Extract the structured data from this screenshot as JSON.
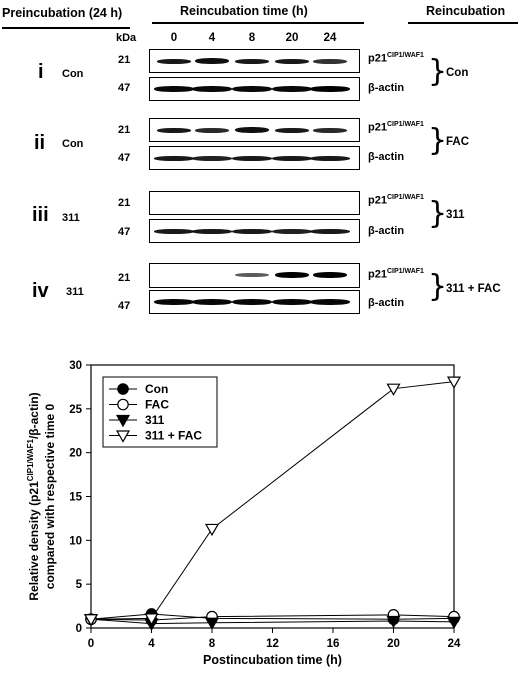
{
  "headers": {
    "preincubation": "Preincubation (24 h)",
    "reincubation_time": "Reincubation time (h)",
    "reincubation": "Reincubation"
  },
  "kda_label": "kDa",
  "lane_times": [
    "0",
    "4",
    "8",
    "20",
    "24"
  ],
  "protein_labels": {
    "p21_main": "p21",
    "p21_sup": "CIP1/WAF1",
    "actin": "β-actin"
  },
  "panels": [
    {
      "roman": "i",
      "preincubation": "Con",
      "reincubation": "Con",
      "mw_p21": "21",
      "mw_actin": "47",
      "p21_intensity": [
        0.85,
        0.9,
        0.85,
        0.85,
        0.7
      ],
      "actin_intensity": [
        0.95,
        0.95,
        0.95,
        0.95,
        1.0
      ]
    },
    {
      "roman": "ii",
      "preincubation": "Con",
      "reincubation": "FAC",
      "mw_p21": "21",
      "mw_actin": "47",
      "p21_intensity": [
        0.85,
        0.75,
        0.9,
        0.85,
        0.75
      ],
      "actin_intensity": [
        0.85,
        0.8,
        0.85,
        0.85,
        0.85
      ]
    },
    {
      "roman": "iii",
      "preincubation": "311",
      "reincubation": "311",
      "mw_p21": "21",
      "mw_actin": "47",
      "p21_intensity": [
        0,
        0,
        0,
        0,
        0
      ],
      "actin_intensity": [
        0.85,
        0.85,
        0.85,
        0.8,
        0.85
      ]
    },
    {
      "roman": "iv",
      "preincubation": "311",
      "reincubation": "311 + FAC",
      "mw_p21": "21",
      "mw_actin": "47",
      "p21_intensity": [
        0,
        0,
        0.45,
        1.0,
        1.0
      ],
      "actin_intensity": [
        0.95,
        0.95,
        0.95,
        0.95,
        0.95
      ]
    }
  ],
  "chart_data": {
    "type": "line",
    "xlabel": "Postincubation time (h)",
    "ylabel_line1": "Relative density (p21",
    "ylabel_sup": "CIP1/WAF1",
    "ylabel_line1_end": "/β-actin)",
    "ylabel_line2": "compared with respective time 0",
    "xlim": [
      0,
      24
    ],
    "ylim": [
      0,
      30
    ],
    "xticks": [
      0,
      4,
      8,
      12,
      16,
      20,
      24
    ],
    "yticks": [
      0,
      5,
      10,
      15,
      20,
      25,
      30
    ],
    "grid": false,
    "legend_position": "top-left",
    "x": [
      0,
      4,
      8,
      20,
      24
    ],
    "series": [
      {
        "name": "Con",
        "marker": "filled-circle",
        "values": [
          1.0,
          1.6,
          1.1,
          1.0,
          1.1
        ]
      },
      {
        "name": "FAC",
        "marker": "open-circle",
        "values": [
          1.0,
          0.9,
          1.3,
          1.5,
          1.3
        ]
      },
      {
        "name": "311",
        "marker": "filled-triangle-down",
        "values": [
          1.0,
          0.5,
          0.6,
          0.8,
          0.7
        ]
      },
      {
        "name": "311 + FAC",
        "marker": "open-triangle-down",
        "values": [
          1.0,
          1.1,
          11.3,
          27.3,
          28.1
        ]
      }
    ]
  }
}
